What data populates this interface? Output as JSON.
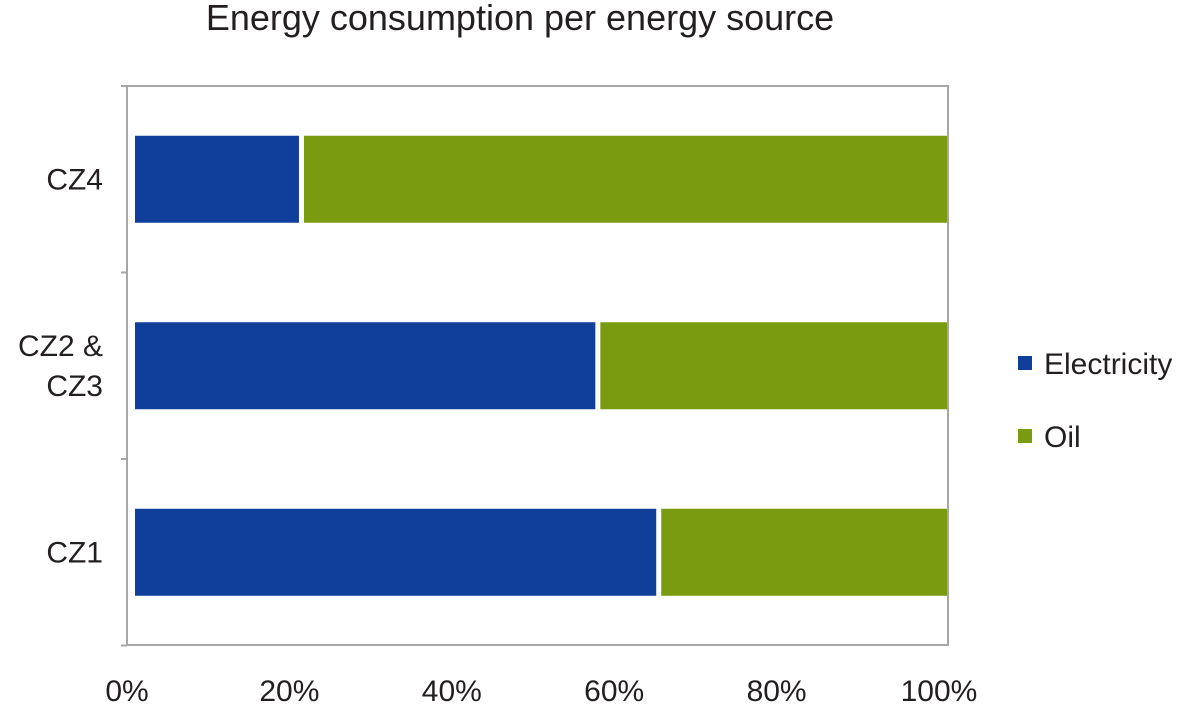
{
  "chart_data": {
    "type": "bar",
    "orientation": "horizontal",
    "stacked": "percent",
    "title": "Energy consumption per energy source",
    "xlabel": "",
    "ylabel": "",
    "categories": [
      "CZ4",
      [
        "CZ2 &",
        "CZ3"
      ],
      "CZ1"
    ],
    "series": [
      {
        "name": "Electricity",
        "values": [
          20.5,
          57,
          64.5
        ],
        "color": "#0f3f9b"
      },
      {
        "name": "Oil",
        "values": [
          79.5,
          43,
          35.5
        ],
        "color": "#7a9a0f"
      }
    ],
    "xlim": [
      0,
      100
    ],
    "xticks": [
      "0%",
      "20%",
      "40%",
      "60%",
      "80%",
      "100%"
    ],
    "grid": false,
    "legend": "right"
  }
}
